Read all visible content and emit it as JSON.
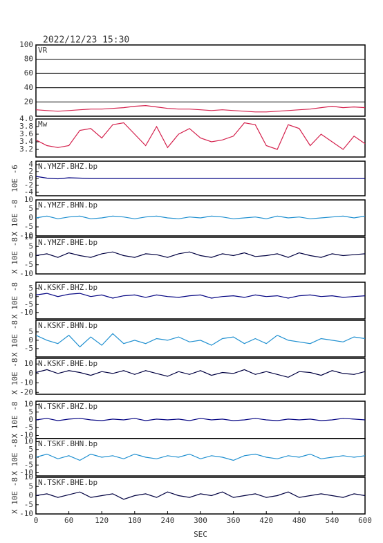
{
  "chart_data": [
    {
      "type": "line",
      "title": "2022/12/23 15:30",
      "grid": true,
      "ylim": [
        0,
        100
      ],
      "yticks": [
        20,
        40,
        60,
        80,
        100
      ],
      "x": [
        0,
        20,
        40,
        60,
        80,
        100,
        120,
        140,
        160,
        180,
        200,
        220,
        240,
        260,
        280,
        300,
        320,
        340,
        360,
        380,
        400,
        420,
        440,
        460,
        480,
        500,
        520,
        540,
        560,
        580,
        600
      ],
      "series": [
        {
          "name": "VR",
          "color": "#d4204c",
          "values": [
            9,
            8,
            7,
            8,
            9,
            10,
            10,
            11,
            12,
            14,
            15,
            13,
            11,
            10,
            10,
            9,
            8,
            9,
            8,
            7,
            6,
            6,
            7,
            8,
            9,
            10,
            12,
            14,
            12,
            13,
            12
          ]
        }
      ]
    },
    {
      "type": "line",
      "ylim": [
        3.0,
        4.0
      ],
      "yticks": [
        3.2,
        3.4,
        3.6,
        3.8,
        {
          "value": 4,
          "label": "4.0"
        }
      ],
      "x": [
        0,
        20,
        40,
        60,
        80,
        100,
        120,
        140,
        160,
        180,
        200,
        220,
        240,
        260,
        280,
        300,
        320,
        340,
        360,
        380,
        400,
        420,
        440,
        460,
        480,
        500,
        520,
        540,
        560,
        580,
        600
      ],
      "series": [
        {
          "name": "Mw",
          "color": "#d4204c",
          "values": [
            3.45,
            3.3,
            3.25,
            3.3,
            3.7,
            3.75,
            3.5,
            3.85,
            3.9,
            3.6,
            3.3,
            3.8,
            3.25,
            3.6,
            3.75,
            3.5,
            3.4,
            3.45,
            3.55,
            3.9,
            3.85,
            3.3,
            3.2,
            3.85,
            3.75,
            3.3,
            3.6,
            3.4,
            3.2,
            3.55,
            3.35
          ]
        }
      ]
    },
    {
      "type": "line",
      "ylabel": "10E -6",
      "ylim": [
        -5,
        5
      ],
      "yticks": [
        -4,
        -2,
        0,
        2,
        4
      ],
      "x": [
        0,
        20,
        40,
        60,
        80,
        100,
        120,
        140,
        160,
        180,
        200,
        220,
        240,
        260,
        280,
        300,
        320,
        340,
        360,
        380,
        400,
        420,
        440,
        460,
        480,
        500,
        520,
        540,
        560,
        580,
        600
      ],
      "series": [
        {
          "name": "N.YMZF.BHZ.bp",
          "color": "#000080",
          "values": [
            0.6,
            0.1,
            -0.1,
            0.2,
            0.1,
            0,
            0,
            0,
            0,
            0,
            0,
            0,
            0,
            0,
            0,
            0,
            0,
            0,
            0,
            0,
            0,
            0,
            0,
            0,
            0,
            0,
            0,
            0,
            0,
            0,
            0
          ]
        }
      ]
    },
    {
      "type": "line",
      "ylabel": "X 10E -8",
      "ylim": [
        -10,
        10
      ],
      "yticks": [
        -10,
        -5,
        0,
        5,
        10
      ],
      "x": [
        0,
        20,
        40,
        60,
        80,
        100,
        120,
        140,
        160,
        180,
        200,
        220,
        240,
        260,
        280,
        300,
        320,
        340,
        360,
        380,
        400,
        420,
        440,
        460,
        480,
        500,
        520,
        540,
        560,
        580,
        600
      ],
      "series": [
        {
          "name": "N.YMZF.BHN.bp",
          "color": "#1e8fd0",
          "values": [
            0,
            1,
            -0.5,
            0.5,
            1,
            -0.5,
            0,
            1,
            0.5,
            -0.5,
            0.5,
            1,
            0,
            -0.5,
            0.5,
            0,
            1,
            0.5,
            -0.5,
            0,
            0.5,
            -0.5,
            1,
            0,
            0.5,
            -0.5,
            0,
            0.5,
            1,
            0,
            1
          ]
        }
      ]
    },
    {
      "type": "line",
      "ylabel": "X 10E -8",
      "ylim": [
        -10,
        10
      ],
      "yticks": [
        -10,
        -5,
        0,
        5,
        10
      ],
      "x": [
        0,
        20,
        40,
        60,
        80,
        100,
        120,
        140,
        160,
        180,
        200,
        220,
        240,
        260,
        280,
        300,
        320,
        340,
        360,
        380,
        400,
        420,
        440,
        460,
        480,
        500,
        520,
        540,
        560,
        580,
        600
      ],
      "series": [
        {
          "name": "N.YMZF.BHE.bp",
          "color": "#000040",
          "values": [
            0,
            1,
            -1,
            1.5,
            0,
            -1,
            1,
            2,
            0,
            -1,
            1,
            0.5,
            -1,
            1,
            2,
            0,
            -1,
            1,
            0,
            1.5,
            -0.5,
            0,
            1,
            -1,
            1.5,
            0,
            -1,
            1,
            0,
            0.5,
            1
          ]
        }
      ]
    },
    {
      "type": "line",
      "ylabel": "X 10E -8",
      "ylim": [
        -14,
        9
      ],
      "yticks": [
        -10,
        -5,
        0,
        5
      ],
      "x": [
        0,
        20,
        40,
        60,
        80,
        100,
        120,
        140,
        160,
        180,
        200,
        220,
        240,
        260,
        280,
        300,
        320,
        340,
        360,
        380,
        400,
        420,
        440,
        460,
        480,
        500,
        520,
        540,
        560,
        580,
        600
      ],
      "series": [
        {
          "name": "N.KSKF.BHZ.bp",
          "color": "#000080",
          "values": [
            1,
            2,
            0,
            1.5,
            2,
            0,
            1,
            -1,
            0.5,
            1,
            -0.5,
            1,
            0,
            -0.5,
            0.5,
            1,
            -1,
            0,
            0.5,
            -0.5,
            1,
            0,
            0.5,
            -1,
            0.5,
            1,
            0,
            0.5,
            -0.5,
            0,
            0.5
          ]
        }
      ]
    },
    {
      "type": "line",
      "ylabel": "X 10E -8",
      "ylim": [
        -10,
        12
      ],
      "yticks": [
        -5,
        0,
        5
      ],
      "x": [
        0,
        20,
        40,
        60,
        80,
        100,
        120,
        140,
        160,
        180,
        200,
        220,
        240,
        260,
        280,
        300,
        320,
        340,
        360,
        380,
        400,
        420,
        440,
        460,
        480,
        500,
        520,
        540,
        560,
        580,
        600
      ],
      "series": [
        {
          "name": "N.KSKF.BHN.bp",
          "color": "#1e8fd0",
          "values": [
            3,
            0,
            -2,
            3,
            -4,
            2,
            -3,
            4,
            -2,
            0,
            -2,
            1,
            0,
            2,
            -1,
            0,
            -3,
            1,
            2,
            -2,
            1,
            -2,
            3,
            0,
            -1,
            -2,
            1,
            0,
            -1,
            2,
            1
          ]
        }
      ]
    },
    {
      "type": "line",
      "ylabel": "X 10E -8",
      "ylim": [
        -22,
        16
      ],
      "yticks": [
        -20,
        -10,
        0,
        10
      ],
      "x": [
        0,
        20,
        40,
        60,
        80,
        100,
        120,
        140,
        160,
        180,
        200,
        220,
        240,
        260,
        280,
        300,
        320,
        340,
        360,
        380,
        400,
        420,
        440,
        460,
        480,
        500,
        520,
        540,
        560,
        580,
        600
      ],
      "series": [
        {
          "name": "N.KSKF.BHE.bp",
          "color": "#000040",
          "values": [
            1,
            4,
            0,
            3,
            1,
            -2,
            2,
            0,
            3,
            -1,
            3,
            0,
            -3,
            2,
            -1,
            3,
            -2,
            1,
            0,
            4,
            -1,
            2,
            -1,
            -4,
            2,
            1,
            -2,
            3,
            0,
            -1,
            2
          ]
        }
      ]
    },
    {
      "type": "line",
      "ylabel": "X 10E -8",
      "ylim": [
        -12,
        12
      ],
      "yticks": [
        -10,
        -5,
        0,
        5,
        10
      ],
      "x": [
        0,
        20,
        40,
        60,
        80,
        100,
        120,
        140,
        160,
        180,
        200,
        220,
        240,
        260,
        280,
        300,
        320,
        340,
        360,
        380,
        400,
        420,
        440,
        460,
        480,
        500,
        520,
        540,
        560,
        580,
        600
      ],
      "series": [
        {
          "name": "N.TSKF.BHZ.bp",
          "color": "#000080",
          "values": [
            0,
            1,
            -0.5,
            0.5,
            1,
            0,
            -0.5,
            0.5,
            0,
            1,
            -0.5,
            0.5,
            0,
            0.5,
            -0.5,
            1,
            0,
            0.5,
            -0.5,
            0,
            1,
            0,
            -0.5,
            0.5,
            0,
            0.5,
            -0.5,
            0,
            1,
            0.5,
            0
          ]
        }
      ]
    },
    {
      "type": "line",
      "ylabel": "X 10E -8",
      "ylim": [
        -12,
        12
      ],
      "yticks": [
        -10,
        -5,
        0,
        5,
        10
      ],
      "x": [
        0,
        20,
        40,
        60,
        80,
        100,
        120,
        140,
        160,
        180,
        200,
        220,
        240,
        260,
        280,
        300,
        320,
        340,
        360,
        380,
        400,
        420,
        440,
        460,
        480,
        500,
        520,
        540,
        560,
        580,
        600
      ],
      "series": [
        {
          "name": "N.TSKF.BHN.bp",
          "color": "#1e8fd0",
          "values": [
            0,
            2,
            -1,
            1,
            -2,
            2,
            0,
            1,
            -1,
            2,
            0,
            -1,
            1,
            0,
            2,
            -1,
            1,
            0,
            -2,
            1,
            2,
            0,
            -1,
            1,
            0,
            2,
            -1,
            0,
            1,
            0,
            1
          ]
        }
      ]
    },
    {
      "type": "line",
      "ylabel": "X 10E -8",
      "xlabel": "SEC",
      "xlim": [
        0,
        600
      ],
      "xticks": [
        0,
        60,
        120,
        180,
        240,
        300,
        360,
        420,
        480,
        540,
        600
      ],
      "ylim": [
        -10,
        10
      ],
      "yticks": [
        -10,
        -5,
        0,
        5,
        10
      ],
      "x": [
        0,
        20,
        40,
        60,
        80,
        100,
        120,
        140,
        160,
        180,
        200,
        220,
        240,
        260,
        280,
        300,
        320,
        340,
        360,
        380,
        400,
        420,
        440,
        460,
        480,
        500,
        520,
        540,
        560,
        580,
        600
      ],
      "series": [
        {
          "name": "N.TSKF.BHE.bp",
          "color": "#000040",
          "values": [
            0,
            1,
            -1,
            0.5,
            2,
            -1,
            0,
            1,
            -2,
            0,
            1,
            -1,
            2,
            0,
            -1,
            1,
            0,
            2,
            -1,
            0,
            1,
            -1,
            0,
            2,
            -1,
            0,
            1,
            0,
            -1,
            1,
            0
          ]
        }
      ]
    }
  ]
}
